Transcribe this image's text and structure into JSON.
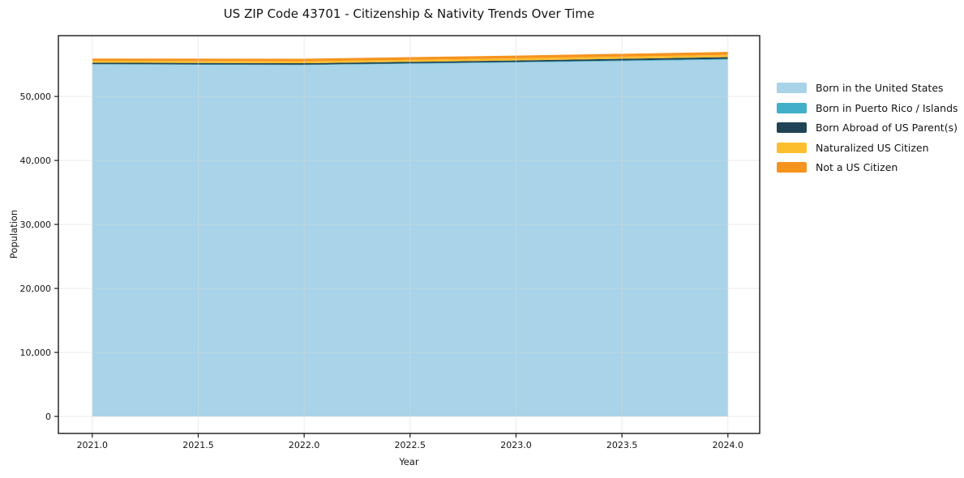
{
  "chart_data": {
    "type": "area",
    "stacked": true,
    "title": "US ZIP Code 43701 - Citizenship & Nativity Trends Over Time",
    "xlabel": "Year",
    "ylabel": "Population",
    "x": [
      2021,
      2022,
      2023,
      2024
    ],
    "series": [
      {
        "name": "Born in the United States",
        "color": "#a8d3e8",
        "values": [
          55000,
          54900,
          55300,
          55750
        ]
      },
      {
        "name": "Born in Puerto Rico / Islands",
        "color": "#41afc7",
        "values": [
          60,
          60,
          80,
          130
        ]
      },
      {
        "name": "Born Abroad of US Parent(s)",
        "color": "#204456",
        "values": [
          220,
          230,
          240,
          260
        ]
      },
      {
        "name": "Naturalized US Citizen",
        "color": "#fdbe2d",
        "values": [
          300,
          320,
          340,
          350
        ]
      },
      {
        "name": "Not a US Citizen",
        "color": "#f6931e",
        "values": [
          350,
          380,
          420,
          470
        ]
      }
    ],
    "xlim": [
      2020.84,
      2024.15
    ],
    "ylim": [
      -2660,
      59500
    ],
    "xticks": {
      "values": [
        2021.0,
        2021.5,
        2022.0,
        2022.5,
        2023.0,
        2023.5,
        2024.0
      ],
      "labels": [
        "2021.0",
        "2021.5",
        "2022.0",
        "2022.5",
        "2023.0",
        "2023.5",
        "2024.0"
      ]
    },
    "yticks": {
      "values": [
        0,
        10000,
        20000,
        30000,
        40000,
        50000
      ],
      "labels": [
        "0",
        "10,000",
        "20,000",
        "30,000",
        "40,000",
        "50,000"
      ]
    },
    "grid": true,
    "legend_position": "right",
    "colors": {
      "frame": "#1a1a1a",
      "gridline": "#d9d9d9",
      "background": "#ffffff"
    }
  }
}
